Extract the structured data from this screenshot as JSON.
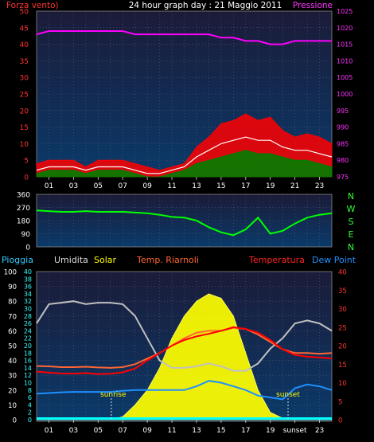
{
  "header": {
    "title": "24 hour graph day : 21 Maggio 2011",
    "left_label": "Forza vento)",
    "right_label": "Pressione"
  },
  "legend": {
    "pioggia": "Pioggia",
    "umidita": "Umidita",
    "solar": "Solar",
    "temp_riarnoli": "Temp. Riarnoli",
    "temperatura": "Temperatura",
    "dew_point": "Dew Point"
  },
  "compass": [
    "N",
    "W",
    "S",
    "E",
    "N"
  ],
  "annotations": {
    "sunrise": "sunrise",
    "sunset": "sunset",
    "sunset_tick": "sunset"
  },
  "colors": {
    "wind_max": "#ff0000",
    "wind_avg": "#ffffff",
    "wind_min": "#008000",
    "pressure": "#ff00ff",
    "direction": "#00ff00",
    "humidity": "#c0c0c0",
    "solar": "#ffff00",
    "temp_riarnoli": "#ff6633",
    "temperature": "#ff0000",
    "dew_point": "#1e90ff",
    "rain": "#00ffff",
    "plot_bg_top": "#1a1a3a",
    "plot_bg_bottom": "#0a3a6a"
  },
  "chart_data": [
    {
      "type": "line",
      "name": "wind-pressure",
      "title": "24 hour graph day : 21 Maggio 2011",
      "x_ticks": [
        "01",
        "03",
        "05",
        "07",
        "09",
        "11",
        "13",
        "15",
        "17",
        "19",
        "21",
        "23"
      ],
      "x": [
        0,
        1,
        2,
        3,
        4,
        5,
        6,
        7,
        8,
        9,
        10,
        11,
        12,
        13,
        14,
        15,
        16,
        17,
        18,
        19,
        20,
        21,
        22,
        23,
        24
      ],
      "ylim_left": [
        0,
        50
      ],
      "yticks_left": [
        0,
        5,
        10,
        15,
        20,
        25,
        30,
        35,
        40,
        45,
        50
      ],
      "ylim_right": [
        975,
        1025
      ],
      "yticks_right": [
        975,
        980,
        985,
        990,
        995,
        1000,
        1005,
        1010,
        1015,
        1020,
        1025
      ],
      "series": [
        {
          "name": "Forza vento)",
          "axis": "left",
          "values": [
            4,
            5,
            5,
            5,
            3,
            5,
            5,
            5,
            4,
            3,
            2,
            3,
            4,
            9,
            12,
            16,
            17,
            19,
            17,
            18,
            14,
            12,
            13,
            12,
            10
          ]
        },
        {
          "name": "Forza vento)",
          "axis": "left",
          "values": [
            2,
            3,
            3,
            3,
            2,
            3,
            3,
            3,
            2,
            1,
            1,
            2,
            3,
            6,
            8,
            10,
            11,
            12,
            11,
            11,
            9,
            8,
            8,
            7,
            6
          ]
        },
        {
          "name": "Forza vento)",
          "axis": "left",
          "values": [
            1,
            2,
            2,
            2,
            1,
            2,
            2,
            2,
            1,
            0,
            0,
            1,
            2,
            4,
            5,
            6,
            7,
            8,
            7,
            7,
            6,
            5,
            5,
            4,
            3
          ]
        },
        {
          "name": "Pressione",
          "axis": "right",
          "values": [
            1018,
            1019,
            1019,
            1019,
            1019,
            1019,
            1019,
            1019,
            1018,
            1018,
            1018,
            1018,
            1018,
            1018,
            1018,
            1017,
            1017,
            1016,
            1016,
            1015,
            1015,
            1016,
            1016,
            1016,
            1016
          ]
        }
      ]
    },
    {
      "type": "line",
      "name": "wind-direction",
      "ylim": [
        0,
        360
      ],
      "yticks": [
        0,
        90,
        180,
        270,
        360
      ],
      "x": [
        0,
        1,
        2,
        3,
        4,
        5,
        6,
        7,
        8,
        9,
        10,
        11,
        12,
        13,
        14,
        15,
        16,
        17,
        18,
        19,
        20,
        21,
        22,
        23,
        24
      ],
      "series": [
        {
          "name": "direction",
          "values": [
            250,
            245,
            240,
            240,
            245,
            240,
            240,
            240,
            235,
            230,
            220,
            205,
            200,
            180,
            135,
            100,
            80,
            120,
            200,
            90,
            110,
            160,
            200,
            220,
            230
          ]
        }
      ]
    },
    {
      "type": "line",
      "name": "temperature-humidity-solar",
      "x_ticks": [
        "01",
        "03",
        "05",
        "07",
        "09",
        "11",
        "13",
        "15",
        "17",
        "19",
        "sunset",
        "23"
      ],
      "x": [
        0,
        1,
        2,
        3,
        4,
        5,
        6,
        7,
        8,
        9,
        10,
        11,
        12,
        13,
        14,
        15,
        16,
        17,
        18,
        19,
        20,
        21,
        22,
        23,
        24
      ],
      "ylim_left": [
        0,
        100
      ],
      "yticks_left": [
        0,
        10,
        20,
        30,
        40,
        50,
        60,
        70,
        80,
        90,
        100
      ],
      "ylim_mid": [
        0,
        40
      ],
      "yticks_mid": [
        0,
        2,
        4,
        6,
        8,
        10,
        12,
        14,
        16,
        18,
        20,
        22,
        24,
        26,
        28,
        30,
        32,
        34,
        36,
        38,
        40
      ],
      "ylim_right": [
        0,
        40
      ],
      "yticks_right": [
        0,
        5,
        10,
        15,
        20,
        25,
        30,
        35,
        40
      ],
      "series": [
        {
          "name": "Umidita",
          "axis": "left",
          "values": [
            65,
            78,
            79,
            80,
            78,
            79,
            79,
            78,
            70,
            55,
            40,
            35,
            35,
            36,
            38,
            36,
            33,
            33,
            38,
            48,
            55,
            65,
            67,
            65,
            60
          ]
        },
        {
          "name": "Solar",
          "axis": "left",
          "values": [
            0,
            0,
            0,
            0,
            0,
            0,
            0,
            2,
            10,
            20,
            35,
            55,
            70,
            80,
            85,
            82,
            70,
            45,
            20,
            5,
            1,
            0,
            0,
            0,
            0
          ]
        },
        {
          "name": "Temp. Riarnoli",
          "axis": "right",
          "values": [
            14.5,
            14.4,
            14.2,
            14.2,
            14.3,
            14.1,
            14.0,
            14.2,
            15.0,
            16.5,
            18.0,
            20.0,
            22.0,
            23.5,
            24.0,
            24.0,
            24.8,
            24.5,
            23.0,
            21.0,
            19.0,
            18.0,
            18.0,
            17.8,
            18.0
          ]
        },
        {
          "name": "Temperatura",
          "axis": "right",
          "values": [
            13.0,
            12.7,
            12.5,
            12.4,
            12.6,
            12.3,
            12.4,
            12.8,
            13.8,
            16.0,
            18.0,
            20.0,
            21.5,
            22.5,
            23.2,
            24.0,
            25.0,
            24.5,
            23.5,
            21.5,
            19.0,
            17.5,
            17.0,
            16.8,
            16.5
          ]
        },
        {
          "name": "Dew Point",
          "axis": "right",
          "values": [
            7.0,
            7.2,
            7.4,
            7.5,
            7.5,
            7.5,
            7.5,
            7.8,
            8.0,
            8.0,
            8.0,
            8.0,
            8.0,
            9.0,
            10.5,
            10.0,
            9.0,
            8.0,
            6.5,
            6.0,
            5.5,
            8.5,
            9.5,
            9.0,
            8.0
          ]
        },
        {
          "name": "Pioggia",
          "axis": "mid",
          "values": [
            0,
            0,
            0,
            0,
            0,
            0,
            0,
            0,
            0,
            0,
            0,
            0,
            0,
            0,
            0,
            0,
            0,
            0,
            0,
            0,
            0,
            0,
            0,
            0,
            0
          ]
        }
      ]
    }
  ]
}
